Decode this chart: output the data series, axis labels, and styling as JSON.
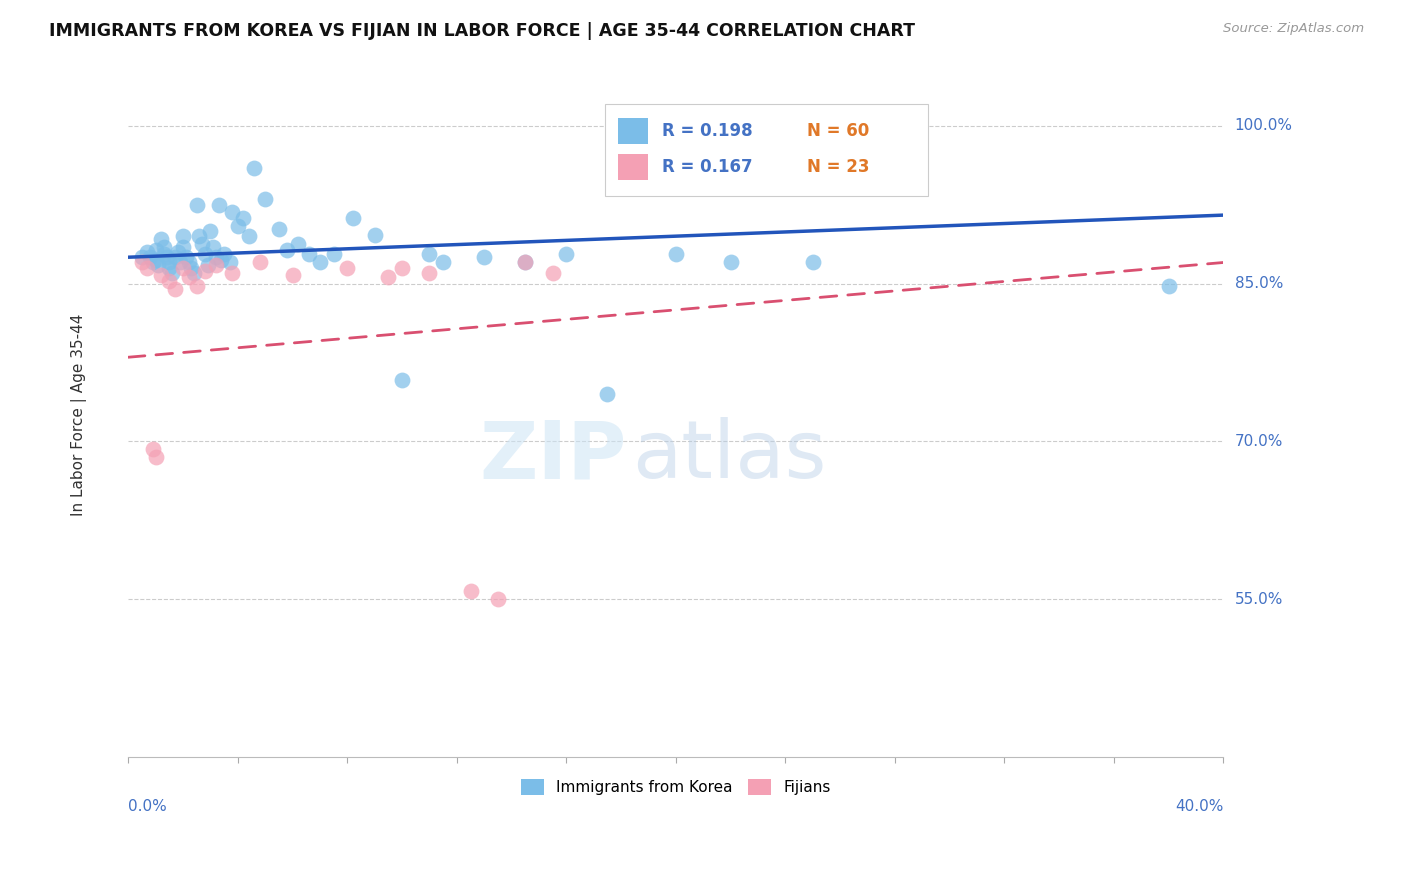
{
  "title": "IMMIGRANTS FROM KOREA VS FIJIAN IN LABOR FORCE | AGE 35-44 CORRELATION CHART",
  "source": "Source: ZipAtlas.com",
  "ylabel": "In Labor Force | Age 35-44",
  "ytick_labels": [
    "100.0%",
    "85.0%",
    "70.0%",
    "55.0%"
  ],
  "ytick_values": [
    1.0,
    0.85,
    0.7,
    0.55
  ],
  "xlim": [
    0.0,
    0.4
  ],
  "ylim": [
    0.4,
    1.05
  ],
  "legend_r_korea": "R = 0.198",
  "legend_n_korea": "N = 60",
  "legend_r_fijian": "R = 0.167",
  "legend_n_fijian": "N = 23",
  "korea_color": "#7bbde8",
  "fijian_color": "#f4a0b4",
  "korea_line_color": "#2255bb",
  "fijian_line_color": "#d94f70",
  "watermark_zip": "ZIP",
  "watermark_atlas": "atlas",
  "korea_x": [
    0.005,
    0.007,
    0.008,
    0.009,
    0.01,
    0.01,
    0.011,
    0.012,
    0.013,
    0.013,
    0.014,
    0.015,
    0.015,
    0.016,
    0.017,
    0.018,
    0.019,
    0.02,
    0.02,
    0.021,
    0.022,
    0.023,
    0.024,
    0.025,
    0.026,
    0.027,
    0.028,
    0.029,
    0.03,
    0.031,
    0.032,
    0.033,
    0.034,
    0.035,
    0.037,
    0.038,
    0.04,
    0.042,
    0.044,
    0.046,
    0.05,
    0.055,
    0.058,
    0.062,
    0.066,
    0.07,
    0.075,
    0.082,
    0.09,
    0.1,
    0.11,
    0.115,
    0.13,
    0.145,
    0.16,
    0.175,
    0.2,
    0.22,
    0.25,
    0.38
  ],
  "korea_y": [
    0.875,
    0.88,
    0.875,
    0.87,
    0.882,
    0.872,
    0.868,
    0.892,
    0.885,
    0.878,
    0.875,
    0.87,
    0.865,
    0.86,
    0.875,
    0.88,
    0.87,
    0.895,
    0.885,
    0.875,
    0.87,
    0.865,
    0.86,
    0.925,
    0.895,
    0.888,
    0.878,
    0.868,
    0.9,
    0.885,
    0.875,
    0.925,
    0.872,
    0.878,
    0.87,
    0.918,
    0.905,
    0.912,
    0.895,
    0.96,
    0.93,
    0.902,
    0.882,
    0.888,
    0.878,
    0.87,
    0.878,
    0.912,
    0.896,
    0.758,
    0.878,
    0.87,
    0.875,
    0.87,
    0.878,
    0.745,
    0.878,
    0.87,
    0.87,
    0.848
  ],
  "fijian_x": [
    0.005,
    0.007,
    0.009,
    0.01,
    0.012,
    0.015,
    0.017,
    0.02,
    0.022,
    0.025,
    0.028,
    0.032,
    0.038,
    0.048,
    0.06,
    0.08,
    0.095,
    0.1,
    0.11,
    0.125,
    0.135,
    0.145,
    0.155
  ],
  "fijian_y": [
    0.87,
    0.865,
    0.693,
    0.685,
    0.858,
    0.852,
    0.845,
    0.865,
    0.856,
    0.848,
    0.862,
    0.868,
    0.86,
    0.87,
    0.858,
    0.865,
    0.856,
    0.865,
    0.86,
    0.558,
    0.55,
    0.87,
    0.86
  ],
  "korea_trendline": [
    0.875,
    0.915
  ],
  "fijian_trendline": [
    0.78,
    0.87
  ]
}
